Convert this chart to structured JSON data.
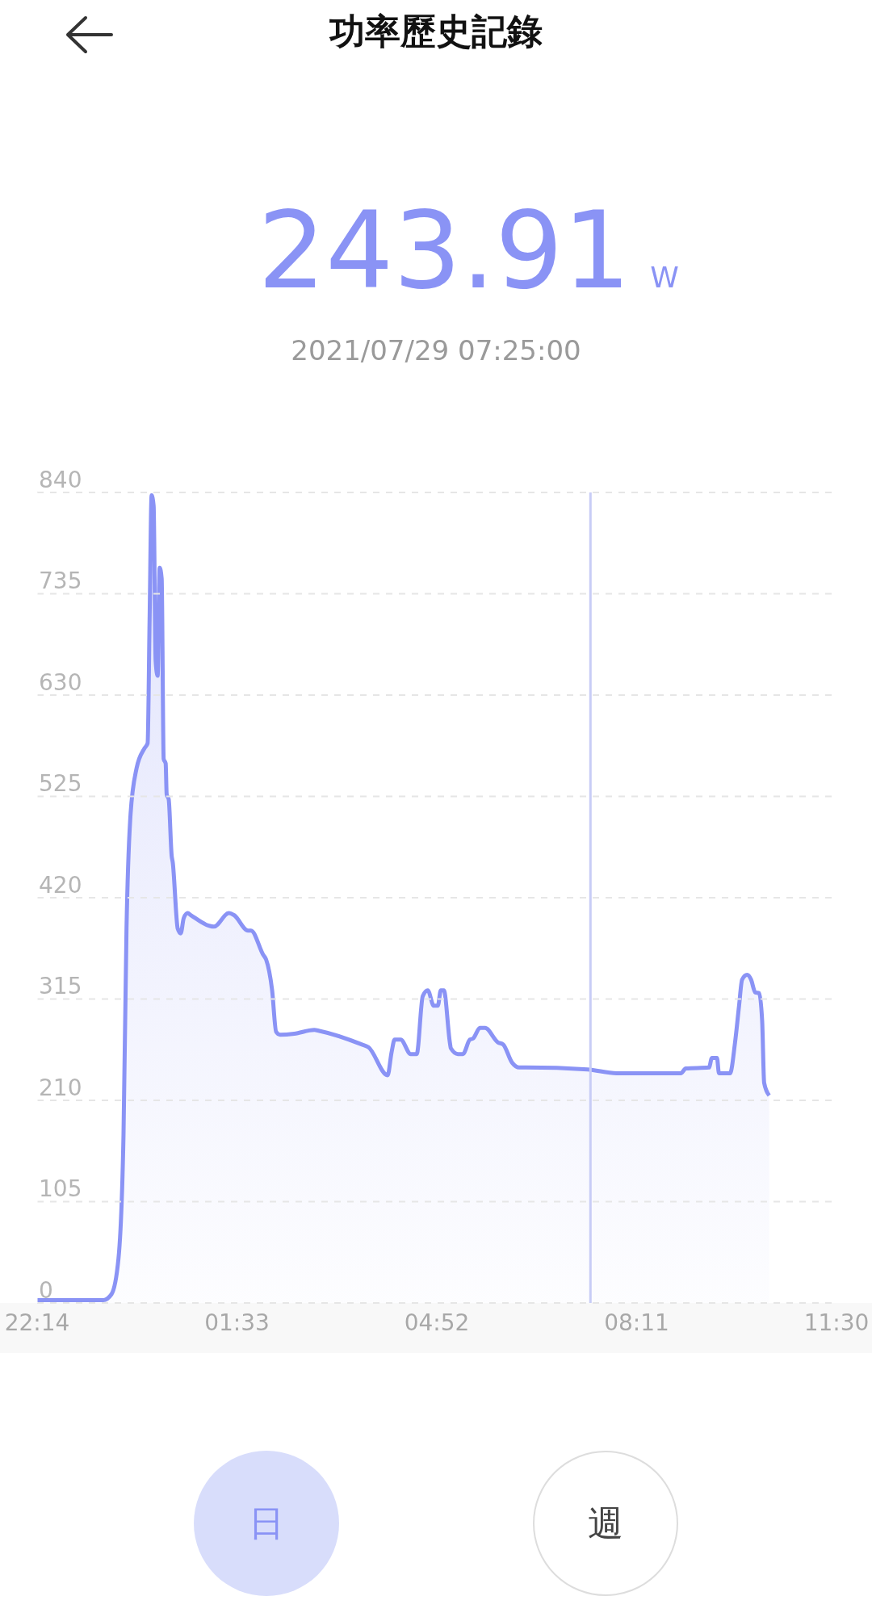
{
  "chart_data": {
    "type": "area",
    "title": "功率歷史記錄",
    "annotations": [
      "243.91",
      "W",
      "2021/07/29 07:25:00",
      "日",
      "週"
    ],
    "x": [
      "2021-07-28T22:14",
      "2021-07-28T23:20",
      "2021-07-28T23:28",
      "2021-07-28T23:35",
      "2021-07-28T23:40",
      "2021-07-28T23:43",
      "2021-07-28T23:47",
      "2021-07-28T23:53",
      "2021-07-29T00:01",
      "2021-07-29T00:04",
      "2021-07-29T00:06",
      "2021-07-29T00:08",
      "2021-07-29T00:10",
      "2021-07-29T00:12",
      "2021-07-29T00:14",
      "2021-07-29T00:16",
      "2021-07-29T00:18",
      "2021-07-29T00:20",
      "2021-07-29T00:22",
      "2021-07-29T00:23",
      "2021-07-29T00:25",
      "2021-07-29T00:28",
      "2021-07-29T00:29",
      "2021-07-29T00:34",
      "2021-07-29T00:37",
      "2021-07-29T00:40",
      "2021-07-29T00:44",
      "2021-07-29T00:47",
      "2021-07-29T01:05",
      "2021-07-29T01:10",
      "2021-07-29T01:25",
      "2021-07-29T01:30",
      "2021-07-29T01:44",
      "2021-07-29T01:47",
      "2021-07-29T01:59",
      "2021-07-29T02:02",
      "2021-07-29T02:08",
      "2021-07-29T02:12",
      "2021-07-29T02:16",
      "2021-07-29T02:30",
      "2021-07-29T02:50",
      "2021-07-29T02:55",
      "2021-07-29T03:37",
      "2021-07-29T03:44",
      "2021-07-29T04:03",
      "2021-07-29T04:07",
      "2021-07-29T04:10",
      "2021-07-29T04:16",
      "2021-07-29T04:26",
      "2021-07-29T04:32",
      "2021-07-29T04:38",
      "2021-07-29T04:43",
      "2021-07-29T04:49",
      "2021-07-29T04:53",
      "2021-07-29T04:56",
      "2021-07-29T04:59",
      "2021-07-29T05:05",
      "2021-07-29T05:06",
      "2021-07-29T05:13",
      "2021-07-29T05:18",
      "2021-07-29T05:25",
      "2021-07-29T05:28",
      "2021-07-29T05:35",
      "2021-07-29T05:40",
      "2021-07-29T05:53",
      "2021-07-29T05:58",
      "2021-07-29T06:07",
      "2021-07-29T06:14",
      "2021-07-29T06:21",
      "2021-07-29T07:22",
      "2021-07-29T07:51",
      "2021-07-29T07:55",
      "2021-07-29T08:55",
      "2021-07-29T09:00",
      "2021-07-29T09:23",
      "2021-07-29T09:26",
      "2021-07-29T09:31",
      "2021-07-29T09:33",
      "2021-07-29T09:44",
      "2021-07-29T09:49",
      "2021-07-29T09:53",
      "2021-07-29T09:56",
      "2021-07-29T10:01",
      "2021-07-29T10:05",
      "2021-07-29T10:09",
      "2021-07-29T10:13",
      "2021-07-29T10:16",
      "2021-07-29T10:18",
      "2021-07-29T10:23"
    ],
    "series": [
      {
        "color": "#8a93f5",
        "values": [
          3,
          3,
          9,
          46,
          174,
          388,
          506,
          554,
          575,
          580,
          709,
          837,
          826,
          666,
          650,
          762,
          751,
          564,
          559,
          527,
          522,
          463,
          457,
          388,
          383,
          399,
          404,
          402,
          391,
          390,
          404,
          402,
          386,
          386,
          361,
          356,
          324,
          281,
          278,
          279,
          283,
          282,
          268,
          265,
          236,
          260,
          273,
          273,
          258,
          258,
          318,
          324,
          308,
          308,
          324,
          324,
          270,
          264,
          258,
          258,
          273,
          274,
          285,
          285,
          270,
          268,
          249,
          244,
          244,
          242,
          238,
          238,
          238,
          243,
          244,
          254,
          254,
          238,
          238,
          270,
          308,
          335,
          340,
          335,
          322,
          321,
          292,
          228,
          215
        ]
      }
    ],
    "xlim": [
      "2021-07-28T22:14",
      "2021-07-29T11:30"
    ],
    "xticks": [
      {
        "value": "2021-07-28T22:14",
        "label": "22:14"
      },
      {
        "value": "2021-07-29T01:33",
        "label": "01:33"
      },
      {
        "value": "2021-07-29T04:52",
        "label": "04:52"
      },
      {
        "value": "2021-07-29T08:11",
        "label": "08:11"
      },
      {
        "value": "2021-07-29T11:30",
        "label": "11:30"
      }
    ],
    "ylim": [
      0,
      840
    ],
    "yticks": [
      0,
      105,
      210,
      315,
      420,
      525,
      630,
      735,
      840
    ],
    "grid": "y",
    "ref_lines": [
      {
        "axis": "x",
        "value": "2021-07-29T07:25",
        "color": "#c8cdf6"
      }
    ]
  }
}
